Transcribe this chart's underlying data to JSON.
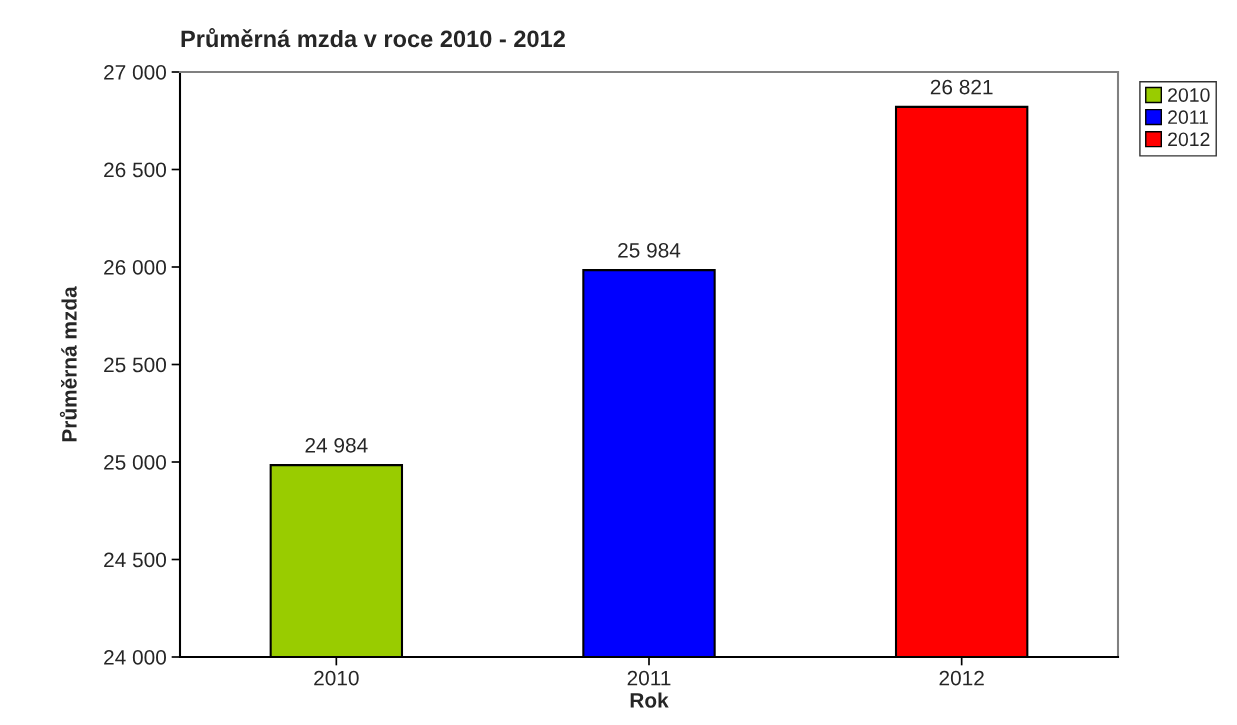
{
  "chart_data": {
    "type": "bar",
    "title": "Průměrná mzda v roce 2010 - 2012",
    "xlabel": "Rok",
    "ylabel": "Průměrná mzda",
    "categories": [
      "2010",
      "2011",
      "2012"
    ],
    "series": [
      {
        "name": "2010",
        "color": "#99cc00",
        "values": [
          24984,
          null,
          null
        ],
        "value_labels": [
          "24 984",
          null,
          null
        ]
      },
      {
        "name": "2011",
        "color": "#0000ff",
        "values": [
          null,
          25984,
          null
        ],
        "value_labels": [
          null,
          "25 984",
          null
        ]
      },
      {
        "name": "2012",
        "color": "#ff0000",
        "values": [
          null,
          null,
          26821
        ],
        "value_labels": [
          null,
          null,
          "26 821"
        ]
      }
    ],
    "ylim": [
      24000,
      27000
    ],
    "yticks": [
      {
        "value": 24000,
        "label": "24 000"
      },
      {
        "value": 24500,
        "label": "24 500"
      },
      {
        "value": 25000,
        "label": "25 000"
      },
      {
        "value": 25500,
        "label": "25 500"
      },
      {
        "value": 26000,
        "label": "26 000"
      },
      {
        "value": 26500,
        "label": "26 500"
      },
      {
        "value": 27000,
        "label": "27 000"
      }
    ],
    "grid": false,
    "legend": "top right"
  }
}
